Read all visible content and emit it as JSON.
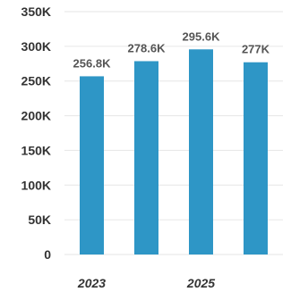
{
  "chart_data": {
    "type": "bar",
    "categories": [
      "2023",
      "",
      "2025",
      ""
    ],
    "values": [
      256800,
      278600,
      295600,
      277000
    ],
    "data_labels": [
      "256.8K",
      "278.6K",
      "295.6K",
      "277K"
    ],
    "title": "",
    "xlabel": "",
    "ylabel": "",
    "ylim": [
      0,
      350000
    ],
    "y_ticks": [
      {
        "value": 0,
        "label": "0"
      },
      {
        "value": 50000,
        "label": "50K"
      },
      {
        "value": 100000,
        "label": "100K"
      },
      {
        "value": 150000,
        "label": "150K"
      },
      {
        "value": 200000,
        "label": "200K"
      },
      {
        "value": 250000,
        "label": "250K"
      },
      {
        "value": 300000,
        "label": "300K"
      },
      {
        "value": 350000,
        "label": "350K"
      }
    ],
    "grid": true,
    "legend": "none",
    "bar_color": "#2e96c6"
  }
}
